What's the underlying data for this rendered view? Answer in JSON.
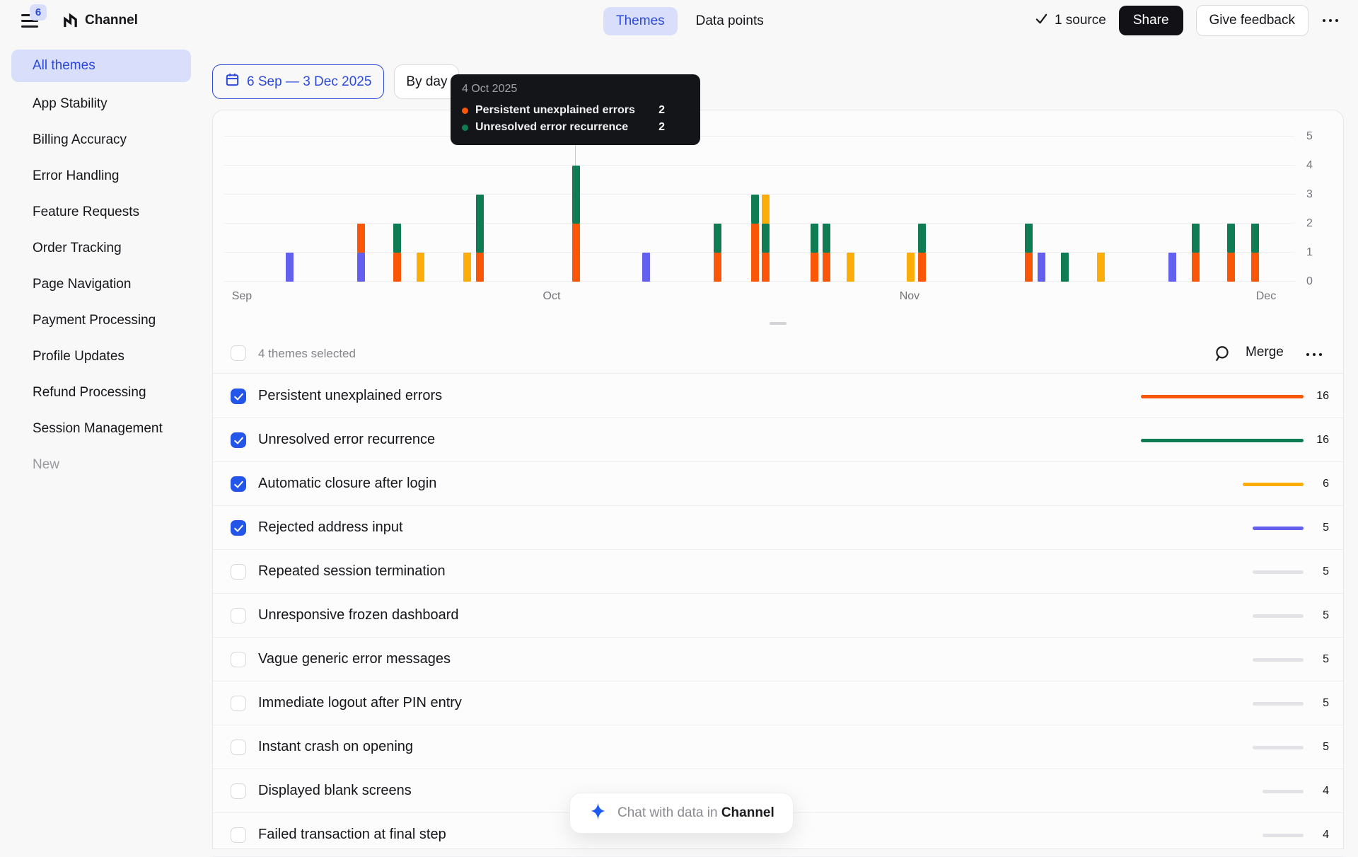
{
  "colors": {
    "orange": "#F95608",
    "green": "#0F7C54",
    "yellow": "#FBAE0A",
    "blue": "#6460EF",
    "gray": "#E3E3E7",
    "accent_blue": "#2C49DA",
    "accent_pill_bg": "#D9DFFB",
    "checkbox_blue": "#2356E8",
    "tooltip_bg": "#141519"
  },
  "icons": [
    "hamburger-menu-icon",
    "channel-logo-icon",
    "check-icon",
    "ellipsis-icon",
    "calendar-icon",
    "search-icon",
    "sparkle-icon"
  ],
  "topbar": {
    "badge": "6",
    "app_name": "Channel",
    "tabs": [
      {
        "label": "Themes",
        "active": true
      },
      {
        "label": "Data points",
        "active": false
      }
    ],
    "source_label": "1 source",
    "share_label": "Share",
    "feedback_label": "Give feedback"
  },
  "sidebar": {
    "items": [
      {
        "label": "All themes",
        "active": true
      },
      {
        "label": "App Stability"
      },
      {
        "label": "Billing Accuracy"
      },
      {
        "label": "Error Handling"
      },
      {
        "label": "Feature Requests"
      },
      {
        "label": "Order Tracking"
      },
      {
        "label": "Page Navigation"
      },
      {
        "label": "Payment Processing"
      },
      {
        "label": "Profile Updates"
      },
      {
        "label": "Refund Processing"
      },
      {
        "label": "Session Management"
      },
      {
        "label": "New",
        "muted": true
      }
    ]
  },
  "controls": {
    "date_range": "6 Sep — 3 Dec 2025",
    "granularity": "By day"
  },
  "tooltip": {
    "date": "4 Oct 2025",
    "anchor_pos": 0.3283,
    "rows": [
      {
        "label": "Persistent unexplained errors",
        "value": 2,
        "color": "orange"
      },
      {
        "label": "Unresolved error recurrence",
        "value": 2,
        "color": "green"
      }
    ]
  },
  "chart_data": {
    "type": "bar",
    "stacked": true,
    "granularity": "day",
    "x_range": [
      "6 Sep 2025",
      "3 Dec 2025"
    ],
    "ylim": [
      0,
      5
    ],
    "yticks": [
      0,
      1,
      2,
      3,
      4,
      5
    ],
    "grid": true,
    "legend_position": "none",
    "series_names": [
      "Persistent unexplained errors",
      "Unresolved error recurrence",
      "Automatic closure after login",
      "Rejected address input"
    ],
    "series_color_keys": {
      "Persistent unexplained errors": "orange",
      "Unresolved error recurrence": "green",
      "Automatic closure after login": "yellow",
      "Rejected address input": "blue"
    },
    "month_labels": [
      {
        "label": "Sep",
        "pos": 0.0165
      },
      {
        "label": "Oct",
        "pos": 0.3058
      },
      {
        "label": "Nov",
        "pos": 0.64
      },
      {
        "label": "Dec",
        "pos": 0.9729
      }
    ],
    "bars": [
      {
        "pos": 0.0614,
        "stack": [
          [
            "blue",
            1
          ]
        ]
      },
      {
        "pos": 0.1275,
        "stack": [
          [
            "blue",
            1
          ],
          [
            "orange",
            1
          ]
        ]
      },
      {
        "pos": 0.1612,
        "stack": [
          [
            "orange",
            1
          ],
          [
            "green",
            1
          ]
        ]
      },
      {
        "pos": 0.183,
        "stack": [
          [
            "yellow",
            1
          ]
        ]
      },
      {
        "pos": 0.2272,
        "stack": [
          [
            "yellow",
            1
          ]
        ]
      },
      {
        "pos": 0.2391,
        "stack": [
          [
            "orange",
            1
          ],
          [
            "green",
            2
          ]
        ]
      },
      {
        "pos": 0.3283,
        "stack": [
          [
            "orange",
            2
          ],
          [
            "green",
            2
          ]
        ]
      },
      {
        "pos": 0.3943,
        "stack": [
          [
            "blue",
            1
          ]
        ]
      },
      {
        "pos": 0.461,
        "stack": [
          [
            "orange",
            1
          ],
          [
            "green",
            1
          ]
        ]
      },
      {
        "pos": 0.4954,
        "stack": [
          [
            "orange",
            2
          ],
          [
            "green",
            1
          ]
        ]
      },
      {
        "pos": 0.5059,
        "stack": [
          [
            "orange",
            1
          ],
          [
            "green",
            1
          ],
          [
            "yellow",
            1
          ]
        ]
      },
      {
        "pos": 0.5515,
        "stack": [
          [
            "orange",
            1
          ],
          [
            "green",
            1
          ]
        ]
      },
      {
        "pos": 0.5627,
        "stack": [
          [
            "orange",
            1
          ],
          [
            "green",
            1
          ]
        ]
      },
      {
        "pos": 0.5852,
        "stack": [
          [
            "yellow",
            1
          ]
        ]
      },
      {
        "pos": 0.6413,
        "stack": [
          [
            "yellow",
            1
          ]
        ]
      },
      {
        "pos": 0.6519,
        "stack": [
          [
            "orange",
            1
          ],
          [
            "green",
            1
          ]
        ]
      },
      {
        "pos": 0.7516,
        "stack": [
          [
            "orange",
            1
          ],
          [
            "green",
            1
          ]
        ]
      },
      {
        "pos": 0.7629,
        "stack": [
          [
            "blue",
            1
          ]
        ]
      },
      {
        "pos": 0.7853,
        "stack": [
          [
            "green",
            1
          ]
        ]
      },
      {
        "pos": 0.819,
        "stack": [
          [
            "yellow",
            1
          ]
        ]
      },
      {
        "pos": 0.8851,
        "stack": [
          [
            "blue",
            1
          ]
        ]
      },
      {
        "pos": 0.9069,
        "stack": [
          [
            "orange",
            1
          ],
          [
            "green",
            1
          ]
        ]
      },
      {
        "pos": 0.9399,
        "stack": [
          [
            "orange",
            1
          ],
          [
            "green",
            1
          ]
        ]
      },
      {
        "pos": 0.963,
        "stack": [
          [
            "orange",
            1
          ],
          [
            "green",
            1
          ]
        ]
      }
    ]
  },
  "table": {
    "header": {
      "selected_text": "4 themes selected",
      "merge_label": "Merge"
    },
    "max_value": 16,
    "rows": [
      {
        "label": "Persistent unexplained errors",
        "value": 16,
        "checked": true,
        "color": "orange"
      },
      {
        "label": "Unresolved error recurrence",
        "value": 16,
        "checked": true,
        "color": "green"
      },
      {
        "label": "Automatic closure after login",
        "value": 6,
        "checked": true,
        "color": "yellow"
      },
      {
        "label": "Rejected address input",
        "value": 5,
        "checked": true,
        "color": "blue"
      },
      {
        "label": "Repeated session termination",
        "value": 5,
        "checked": false,
        "color": "gray"
      },
      {
        "label": "Unresponsive frozen dashboard",
        "value": 5,
        "checked": false,
        "color": "gray"
      },
      {
        "label": "Vague generic error messages",
        "value": 5,
        "checked": false,
        "color": "gray"
      },
      {
        "label": "Immediate logout after PIN entry",
        "value": 5,
        "checked": false,
        "color": "gray"
      },
      {
        "label": "Instant crash on opening",
        "value": 5,
        "checked": false,
        "color": "gray"
      },
      {
        "label": "Displayed blank screens",
        "value": 4,
        "checked": false,
        "color": "gray"
      },
      {
        "label": "Failed transaction at final step",
        "value": 4,
        "checked": false,
        "color": "gray"
      }
    ]
  },
  "chat": {
    "prefix": "Chat with data in",
    "app": "Channel"
  }
}
